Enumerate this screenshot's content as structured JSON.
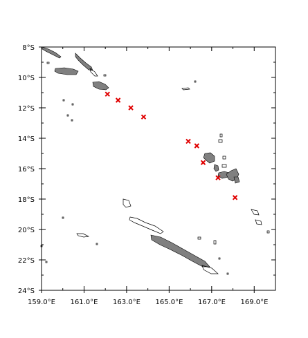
{
  "map": {
    "projection": "lon-lat",
    "lon_range": [
      159.0,
      170.0
    ],
    "lat_range": [
      -24.0,
      -8.0
    ],
    "x_ticks": [
      {
        "value": 159,
        "label": "159.0°E"
      },
      {
        "value": 161,
        "label": "161.0°E"
      },
      {
        "value": 163,
        "label": "163.0°E"
      },
      {
        "value": 165,
        "label": "165.0°E"
      },
      {
        "value": 167,
        "label": "167.0°E"
      },
      {
        "value": 169,
        "label": "169.0°E"
      }
    ],
    "y_ticks": [
      {
        "value": -8,
        "label": "8°S"
      },
      {
        "value": -10,
        "label": "10°S"
      },
      {
        "value": -12,
        "label": "12°S"
      },
      {
        "value": -14,
        "label": "14°S"
      },
      {
        "value": -16,
        "label": "16°S"
      },
      {
        "value": -18,
        "label": "18°S"
      },
      {
        "value": -20,
        "label": "20°S"
      },
      {
        "value": -22,
        "label": "22°S"
      },
      {
        "value": -24,
        "label": "24°S"
      }
    ],
    "land_color": "#808080",
    "coast_color": "#000000",
    "marker_color": "#e00000",
    "marker_symbol": "x",
    "markers": [
      {
        "lon": 162.1,
        "lat": -11.1
      },
      {
        "lon": 162.6,
        "lat": -11.5
      },
      {
        "lon": 163.2,
        "lat": -12.0
      },
      {
        "lon": 163.8,
        "lat": -12.6
      },
      {
        "lon": 165.9,
        "lat": -14.2
      },
      {
        "lon": 166.3,
        "lat": -14.5
      },
      {
        "lon": 166.6,
        "lat": -15.6
      },
      {
        "lon": 167.3,
        "lat": -16.6
      },
      {
        "lon": 168.1,
        "lat": -17.9
      }
    ]
  }
}
